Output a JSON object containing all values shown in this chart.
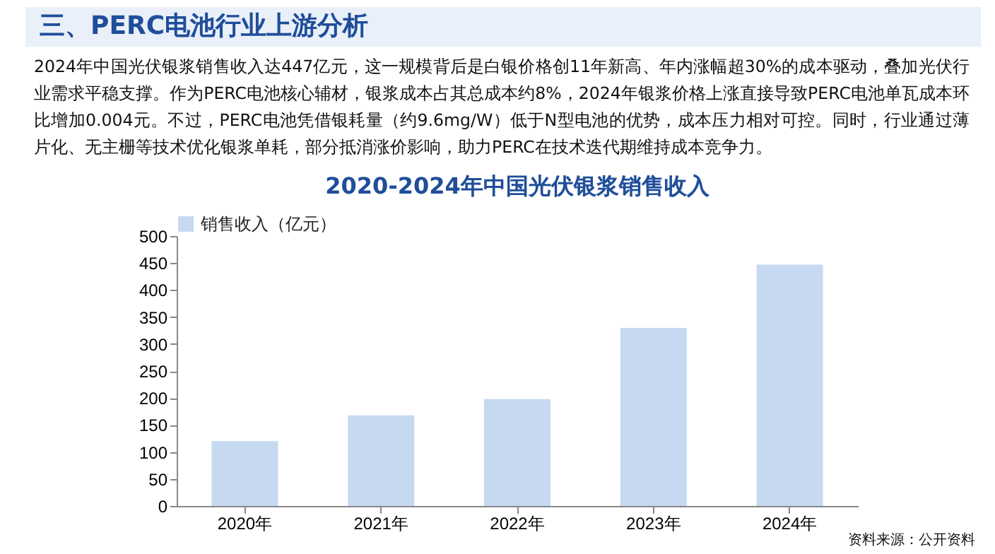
{
  "chart_data": {
    "type": "bar",
    "title": "2020-2024年中国光伏银浆销售收入",
    "annotations": [
      "三、PERC电池行业上游分析",
      "2024年中国光伏银浆销售收入达447亿元，这一规模背后是白银价格创11年新高、年内涨幅超30%的成本驱动，叠加光伏行业需求平稳支撑。作为PERC电池核心辅材，银浆成本占其总成本约8%，2024年银浆价格上涨直接导致PERC电池单瓦成本环比增加0.004元。不过，PERC电池凭借银耗量（约9.6mg/W）低于N型电池的优势，成本压力相对可控。同时，行业通过薄片化、无主栅等技术优化银浆单耗，部分抵消涨价影响，助力PERC在技术迭代期维持成本竞争力。",
      "资料来源：公开资料"
    ],
    "categories": [
      "2020年",
      "2021年",
      "2022年",
      "2023年",
      "2024年"
    ],
    "series": [
      {
        "name": "销售收入（亿元）",
        "color": "#c6d9f1",
        "values": [
          120,
          168,
          198,
          330,
          447
        ]
      }
    ],
    "ylim": [
      0,
      500
    ],
    "yticks": [
      0,
      50,
      100,
      150,
      200,
      250,
      300,
      350,
      400,
      450,
      500
    ],
    "legend": "top"
  }
}
